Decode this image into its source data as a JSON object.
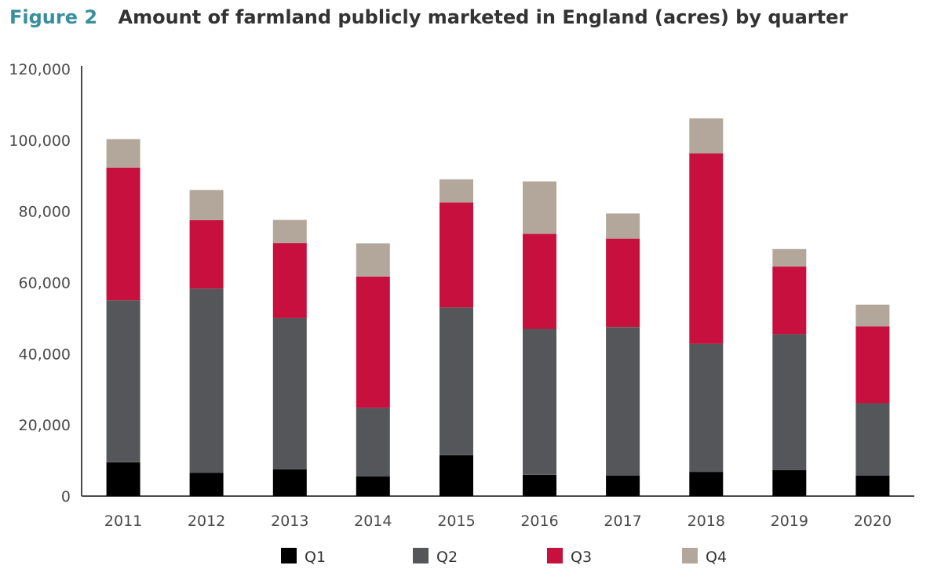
{
  "figure": {
    "label": "Figure 2",
    "title": "Amount of farmland publicly marketed in England (acres) by quarter"
  },
  "chart_data": {
    "type": "bar",
    "stacked": true,
    "title": "Amount of farmland publicly marketed in England (acres) by quarter",
    "xlabel": "",
    "ylabel": "",
    "ylim": [
      0,
      120000
    ],
    "yticks": [
      0,
      20000,
      40000,
      60000,
      80000,
      100000,
      120000
    ],
    "ytick_labels": [
      "0",
      "20,000",
      "40,000",
      "60,000",
      "80,000",
      "100,000",
      "120,000"
    ],
    "categories": [
      "2011",
      "2012",
      "2013",
      "2014",
      "2015",
      "2016",
      "2017",
      "2018",
      "2019",
      "2020"
    ],
    "grid": false,
    "legend_position": "bottom",
    "series": [
      {
        "name": "Q1",
        "color": "#000000",
        "values": [
          9500,
          6500,
          7500,
          5500,
          11500,
          6000,
          5800,
          6800,
          7300,
          5800
        ]
      },
      {
        "name": "Q2",
        "color": "#555659",
        "values": [
          45500,
          51800,
          42500,
          19300,
          41500,
          41000,
          41700,
          36000,
          38200,
          20300
        ]
      },
      {
        "name": "Q3",
        "color": "#c8103e",
        "values": [
          37300,
          19200,
          21100,
          36900,
          29500,
          26700,
          24800,
          53500,
          19000,
          21600
        ]
      },
      {
        "name": "Q4",
        "color": "#b3a79b",
        "values": [
          8000,
          8500,
          6500,
          9300,
          6500,
          14700,
          7100,
          9800,
          4900,
          6100
        ]
      }
    ]
  }
}
